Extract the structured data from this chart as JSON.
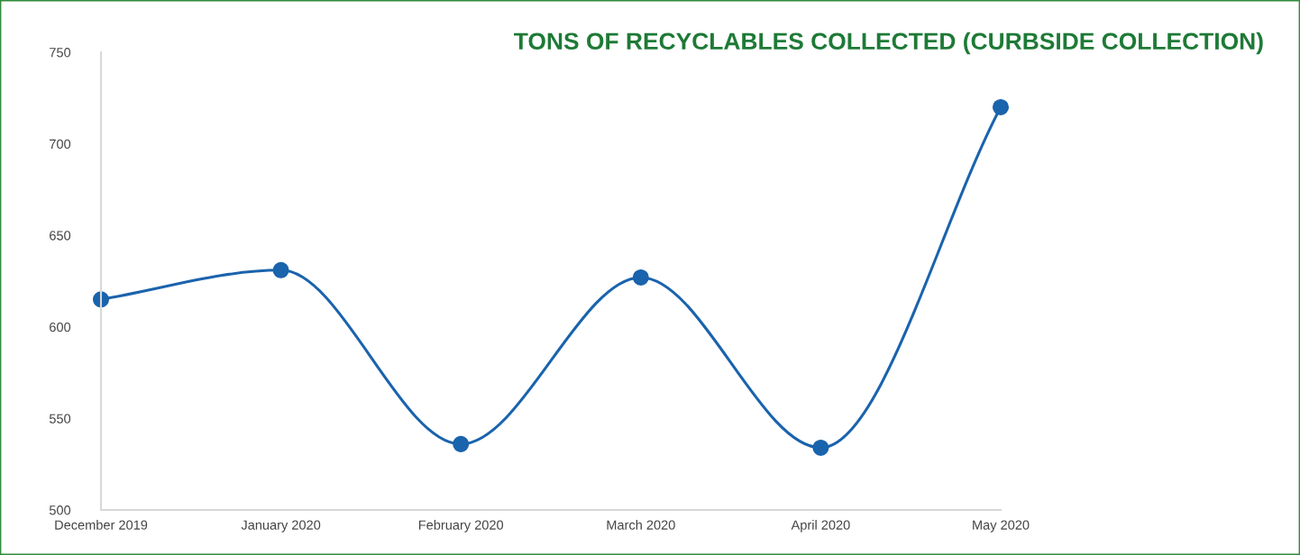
{
  "chart_data": {
    "type": "line",
    "title": "TONS OF RECYCLABLES COLLECTED (CURBSIDE COLLECTION)",
    "categories": [
      "December 2019",
      "January 2020",
      "February 2020",
      "March 2020",
      "April 2020",
      "May 2020"
    ],
    "series": [
      {
        "color": "#1a63ad",
        "values": [
          615,
          631,
          536,
          627,
          534,
          720
        ]
      }
    ],
    "ylim": [
      500,
      750
    ],
    "yticks": [
      500,
      550,
      600,
      650,
      700,
      750
    ],
    "grid": false,
    "marker": "circle",
    "line_style": "solid"
  }
}
